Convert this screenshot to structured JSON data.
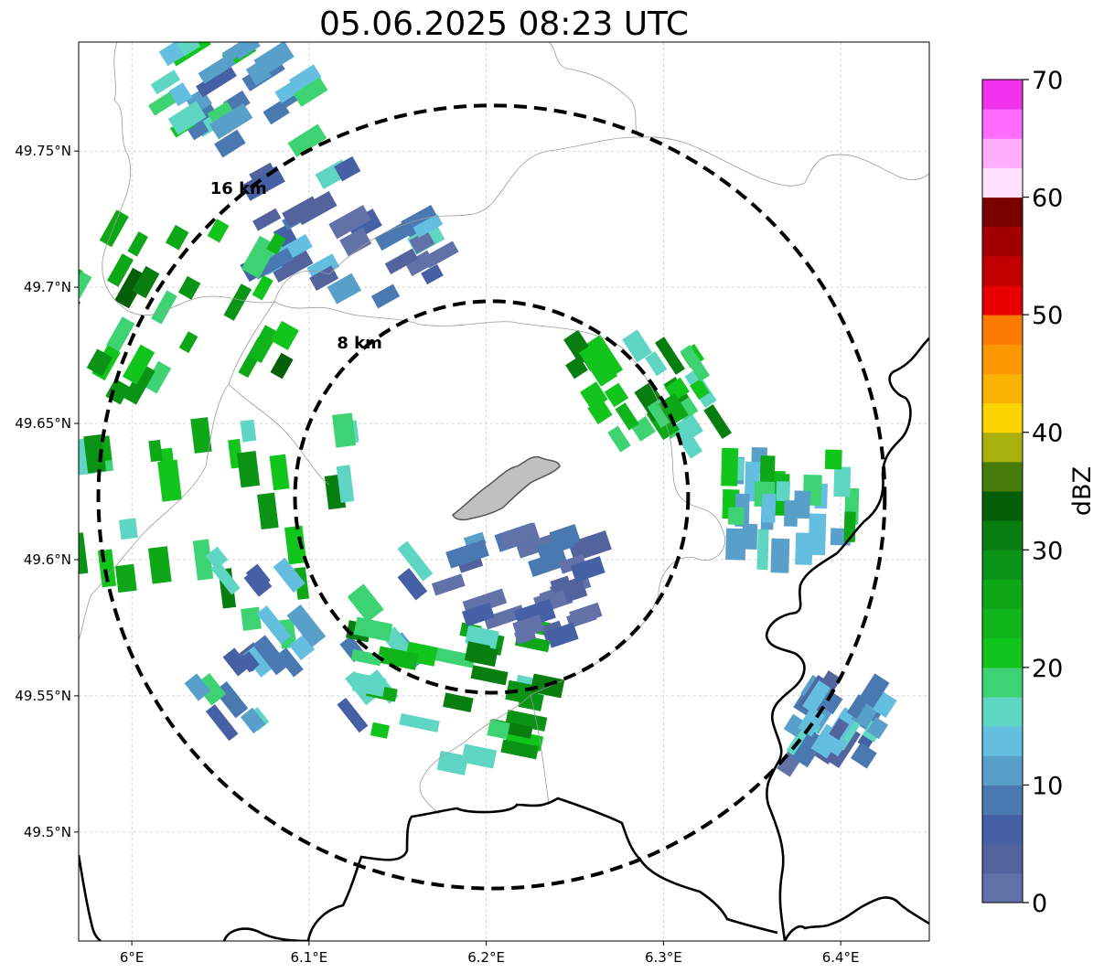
{
  "title": "05.06.2025 08:23 UTC",
  "map": {
    "lon_range": [
      5.97,
      6.45
    ],
    "lat_range": [
      49.46,
      49.79
    ],
    "grid": true,
    "lon_ticks": [
      {
        "value": 6.0,
        "label": "6°E"
      },
      {
        "value": 6.1,
        "label": "6.1°E"
      },
      {
        "value": 6.2,
        "label": "6.2°E"
      },
      {
        "value": 6.3,
        "label": "6.3°E"
      },
      {
        "value": 6.4,
        "label": "6.4°E"
      }
    ],
    "lat_ticks": [
      {
        "value": 49.5,
        "label": "49.5°N"
      },
      {
        "value": 49.55,
        "label": "49.55°N"
      },
      {
        "value": 49.6,
        "label": "49.6°N"
      },
      {
        "value": 49.65,
        "label": "49.65°N"
      },
      {
        "value": 49.7,
        "label": "49.7°N"
      },
      {
        "value": 49.75,
        "label": "49.75°N"
      }
    ],
    "center": {
      "lon": 6.203,
      "lat": 49.623
    },
    "rings": [
      {
        "radius_km": 8,
        "label": "8 km"
      },
      {
        "radius_km": 16,
        "label": "16 km"
      }
    ]
  },
  "colorbar": {
    "label": "dBZ",
    "min": 0,
    "max": 70,
    "ticks": [
      0,
      10,
      20,
      30,
      40,
      50,
      60,
      70
    ],
    "tick_labels": [
      "0",
      "10",
      "20",
      "30",
      "40",
      "50",
      "60",
      "70"
    ],
    "colors": [
      "#6272a8",
      "#52639e",
      "#4560a4",
      "#4a79b2",
      "#58a0ca",
      "#63bedf",
      "#5fd6c4",
      "#3dd373",
      "#12c51c",
      "#0fb51a",
      "#0ea718",
      "#0a9314",
      "#087e10",
      "#055e08",
      "#477b0a",
      "#a8b00e",
      "#fcd200",
      "#fbb100",
      "#fb9700",
      "#fb7a00",
      "#e70000",
      "#c20000",
      "#a00000",
      "#7a0000",
      "#ffe2ff",
      "#ffaeff",
      "#ff6cff",
      "#f233ee"
    ]
  },
  "colors": {
    "ring": "#000000",
    "border": "#000000",
    "admin": "#9a9a9a",
    "city_fill": "#c0c0c0",
    "city_edge": "#555555"
  },
  "chart_data": {
    "type": "heatmap",
    "title": "05.06.2025 08:23 UTC",
    "colorbar_label": "dBZ",
    "value_range": [
      0,
      70
    ],
    "echo_cells": [
      {
        "lon": 6.06,
        "lat": 49.77,
        "dbz": 14,
        "size_km": 3
      },
      {
        "lon": 6.12,
        "lat": 49.72,
        "dbz": 8,
        "size_km": 4
      },
      {
        "lon": 6.02,
        "lat": 49.69,
        "dbz": 26,
        "size_km": 5
      },
      {
        "lon": 6.04,
        "lat": 49.61,
        "dbz": 24,
        "size_km": 6
      },
      {
        "lon": 6.1,
        "lat": 49.57,
        "dbz": 12,
        "size_km": 5
      },
      {
        "lon": 6.18,
        "lat": 49.55,
        "dbz": 24,
        "size_km": 4
      },
      {
        "lon": 6.22,
        "lat": 49.59,
        "dbz": 4,
        "size_km": 3
      },
      {
        "lon": 6.29,
        "lat": 49.66,
        "dbz": 24,
        "size_km": 3
      },
      {
        "lon": 6.37,
        "lat": 49.62,
        "dbz": 18,
        "size_km": 3
      },
      {
        "lon": 6.4,
        "lat": 49.54,
        "dbz": 10,
        "size_km": 2
      }
    ]
  }
}
